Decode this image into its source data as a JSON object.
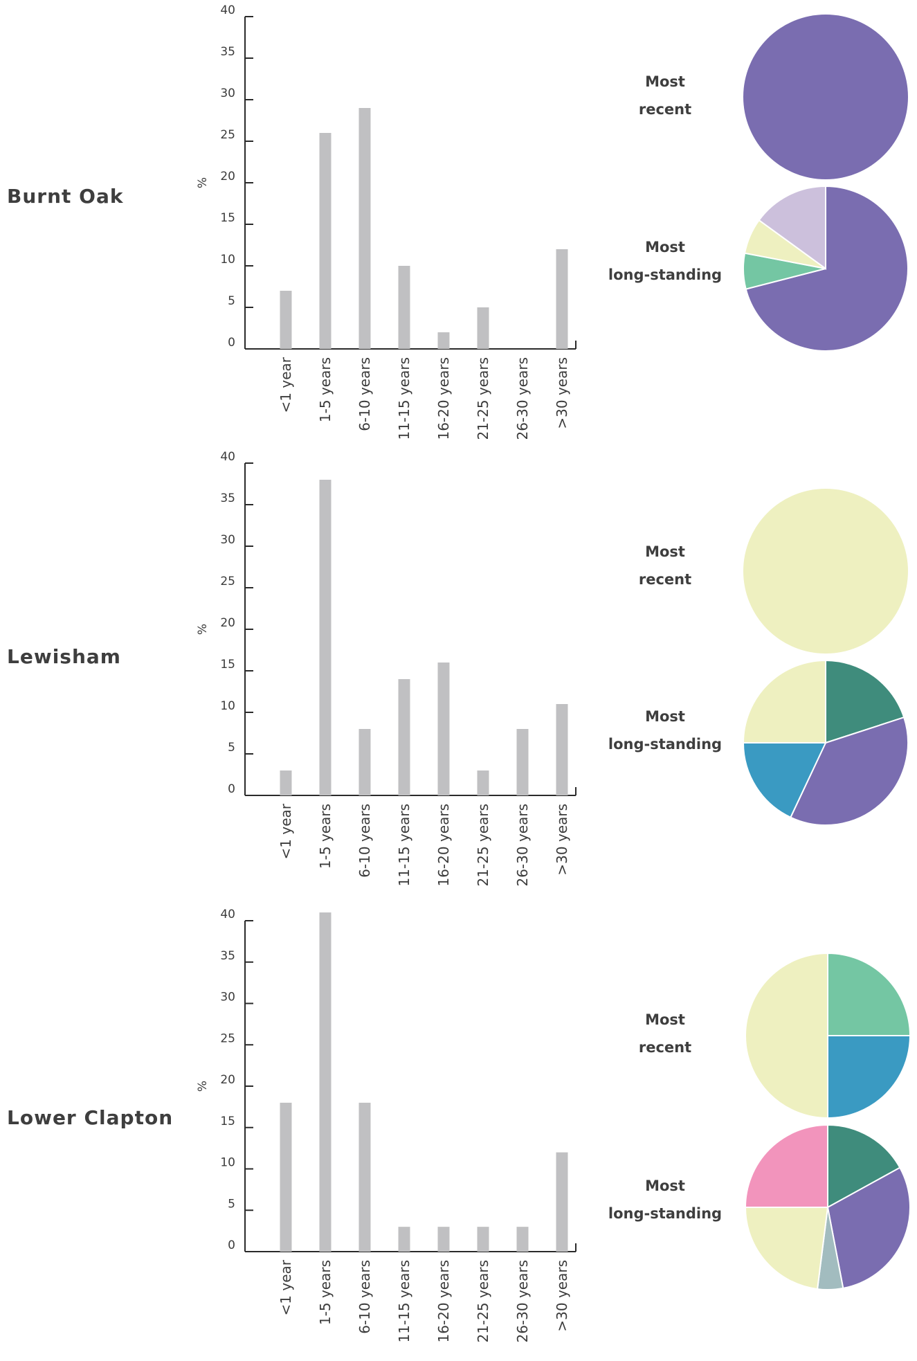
{
  "chart_data": [
    {
      "type": "bar",
      "title": "Burnt Oak",
      "ylabel": "%",
      "ylim": [
        0,
        40
      ],
      "yticks": [
        0,
        5,
        10,
        15,
        20,
        25,
        30,
        35,
        40
      ],
      "categories": [
        "<1 year",
        "1-5 years",
        "6-10 years",
        "11-15 years",
        "16-20 years",
        "21-25 years",
        "26-30 years",
        ">30 years"
      ],
      "values": [
        7,
        26,
        29,
        10,
        2,
        5,
        0,
        12
      ],
      "pies": [
        {
          "label_lines": [
            "Most",
            "recent"
          ],
          "slices": [
            {
              "value": 100,
              "color": "#7a6db0"
            }
          ]
        },
        {
          "label_lines": [
            "Most",
            "long-standing"
          ],
          "slices": [
            {
              "value": 71,
              "color": "#7a6db0"
            },
            {
              "value": 7,
              "color": "#74c6a3"
            },
            {
              "value": 7,
              "color": "#eef0c0"
            },
            {
              "value": 15,
              "color": "#ccc0dc"
            }
          ]
        }
      ]
    },
    {
      "type": "bar",
      "title": "Lewisham",
      "ylabel": "%",
      "ylim": [
        0,
        40
      ],
      "yticks": [
        0,
        5,
        10,
        15,
        20,
        25,
        30,
        35,
        40
      ],
      "categories": [
        "<1 year",
        "1-5 years",
        "6-10 years",
        "11-15 years",
        "16-20 years",
        "21-25 years",
        "26-30 years",
        ">30 years"
      ],
      "values": [
        3,
        38,
        8,
        14,
        16,
        3,
        8,
        11
      ],
      "pies": [
        {
          "label_lines": [
            "Most",
            "recent"
          ],
          "slices": [
            {
              "value": 100,
              "color": "#eef0c0"
            }
          ]
        },
        {
          "label_lines": [
            "Most",
            "long-standing"
          ],
          "slices": [
            {
              "value": 20,
              "color": "#3f8c7c"
            },
            {
              "value": 37,
              "color": "#7a6db0"
            },
            {
              "value": 18,
              "color": "#3a9ac2"
            },
            {
              "value": 25,
              "color": "#eef0c0"
            }
          ]
        }
      ]
    },
    {
      "type": "bar",
      "title": "Lower Clapton",
      "ylabel": "%",
      "ylim": [
        0,
        40
      ],
      "yticks": [
        0,
        5,
        10,
        15,
        20,
        25,
        30,
        35,
        40
      ],
      "categories": [
        "<1 year",
        "1-5 years",
        "6-10 years",
        "11-15 years",
        "16-20 years",
        "21-25 years",
        "26-30 years",
        ">30 years"
      ],
      "values": [
        18,
        41,
        18,
        3,
        3,
        3,
        3,
        12
      ],
      "pies": [
        {
          "label_lines": [
            "Most",
            "recent"
          ],
          "slices": [
            {
              "value": 25,
              "color": "#74c6a3"
            },
            {
              "value": 25,
              "color": "#3a9ac2"
            },
            {
              "value": 50,
              "color": "#eef0c0"
            }
          ]
        },
        {
          "label_lines": [
            "Most",
            "long-standing"
          ],
          "slices": [
            {
              "value": 17,
              "color": "#3f8c7c"
            },
            {
              "value": 30,
              "color": "#7a6db0"
            },
            {
              "value": 5,
              "color": "#a2bcbf"
            },
            {
              "value": 23,
              "color": "#eef0c0"
            },
            {
              "value": 25,
              "color": "#f294bc"
            }
          ]
        }
      ]
    }
  ]
}
